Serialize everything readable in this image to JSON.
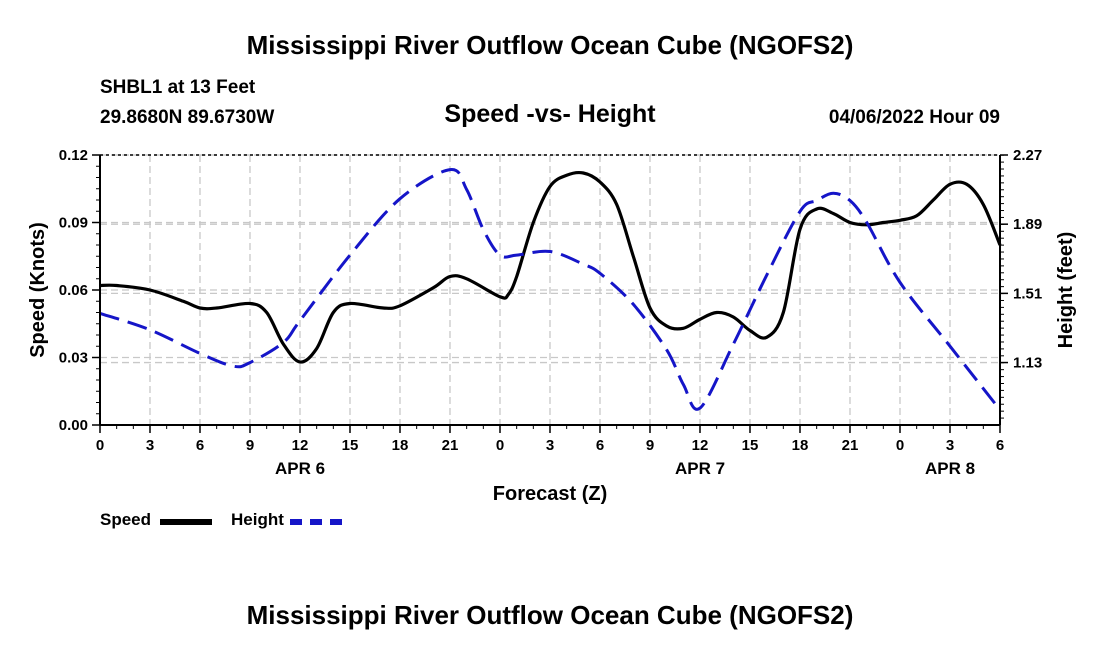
{
  "page": {
    "top_title": "Mississippi River Outflow Ocean Cube (NGOFS2)",
    "bottom_title": "Mississippi River Outflow Ocean Cube (NGOFS2)",
    "station": "SHBL1 at 13 Feet",
    "coords": "29.8680N  89.6730W",
    "datetime": "04/06/2022 Hour 09"
  },
  "legend": {
    "items": [
      {
        "label": "Speed",
        "color": "#000000",
        "style": "solid"
      },
      {
        "label": "Height",
        "color": "#1515c8",
        "style": "dashed"
      }
    ]
  },
  "chart_data": {
    "type": "line",
    "title": "Speed -vs- Height",
    "xlabel": "Forecast (Z)",
    "ylabel": "Speed (Knots)",
    "y2label": "Height (feet)",
    "x_tick_labels": [
      "0",
      "3",
      "6",
      "9",
      "12",
      "15",
      "18",
      "21",
      "0",
      "3",
      "6",
      "9",
      "12",
      "15",
      "18",
      "21",
      "0",
      "3",
      "6"
    ],
    "x_hours_range": [
      0,
      54
    ],
    "date_labels": [
      {
        "label": "APR 6",
        "hour": 12
      },
      {
        "label": "APR 7",
        "hour": 36
      },
      {
        "label": "APR 8",
        "hour": 60
      }
    ],
    "ylim": [
      0,
      0.12
    ],
    "y_ticks": [
      "0.00",
      "0.03",
      "0.06",
      "0.09",
      "0.12"
    ],
    "y2lim": [
      0.787,
      2.27
    ],
    "y2_ticks": [
      "1.13",
      "1.51",
      "1.89",
      "2.27"
    ],
    "grid": true,
    "series": [
      {
        "name": "Speed",
        "axis": "left",
        "color": "#000000",
        "x": [
          0,
          1,
          3,
          5,
          6,
          7,
          9,
          10,
          11,
          12,
          13,
          14,
          15,
          17,
          18,
          20,
          21,
          22,
          24,
          24.5,
          25,
          26,
          27,
          28,
          29,
          30,
          31,
          32,
          33,
          34,
          35,
          36,
          37,
          38,
          39,
          40,
          41,
          42,
          43,
          44,
          45,
          46,
          47,
          48,
          49,
          50,
          51,
          52,
          53,
          54
        ],
        "values": [
          0.062,
          0.062,
          0.06,
          0.055,
          0.052,
          0.052,
          0.054,
          0.05,
          0.036,
          0.028,
          0.034,
          0.05,
          0.054,
          0.052,
          0.053,
          0.061,
          0.066,
          0.065,
          0.057,
          0.058,
          0.066,
          0.09,
          0.106,
          0.111,
          0.112,
          0.108,
          0.098,
          0.075,
          0.052,
          0.044,
          0.043,
          0.047,
          0.05,
          0.048,
          0.042,
          0.039,
          0.05,
          0.087,
          0.096,
          0.094,
          0.09,
          0.089,
          0.09,
          0.091,
          0.093,
          0.1,
          0.107,
          0.107,
          0.098,
          0.08
        ]
      },
      {
        "name": "Height",
        "axis": "right",
        "color": "#1515c8",
        "x": [
          0,
          3,
          6,
          8,
          9,
          11,
          12,
          15,
          18,
          21,
          22,
          23,
          24,
          25,
          27,
          29,
          30,
          32,
          34,
          35,
          36,
          38,
          40,
          42,
          43,
          44,
          45,
          46,
          48,
          51,
          54
        ],
        "values": [
          1.4,
          1.31,
          1.18,
          1.11,
          1.13,
          1.24,
          1.36,
          1.72,
          2.03,
          2.19,
          2.08,
          1.86,
          1.72,
          1.72,
          1.74,
          1.67,
          1.62,
          1.45,
          1.2,
          1.01,
          0.88,
          1.23,
          1.61,
          1.96,
          2.02,
          2.06,
          2.02,
          1.9,
          1.57,
          1.22,
          0.87
        ]
      }
    ]
  }
}
